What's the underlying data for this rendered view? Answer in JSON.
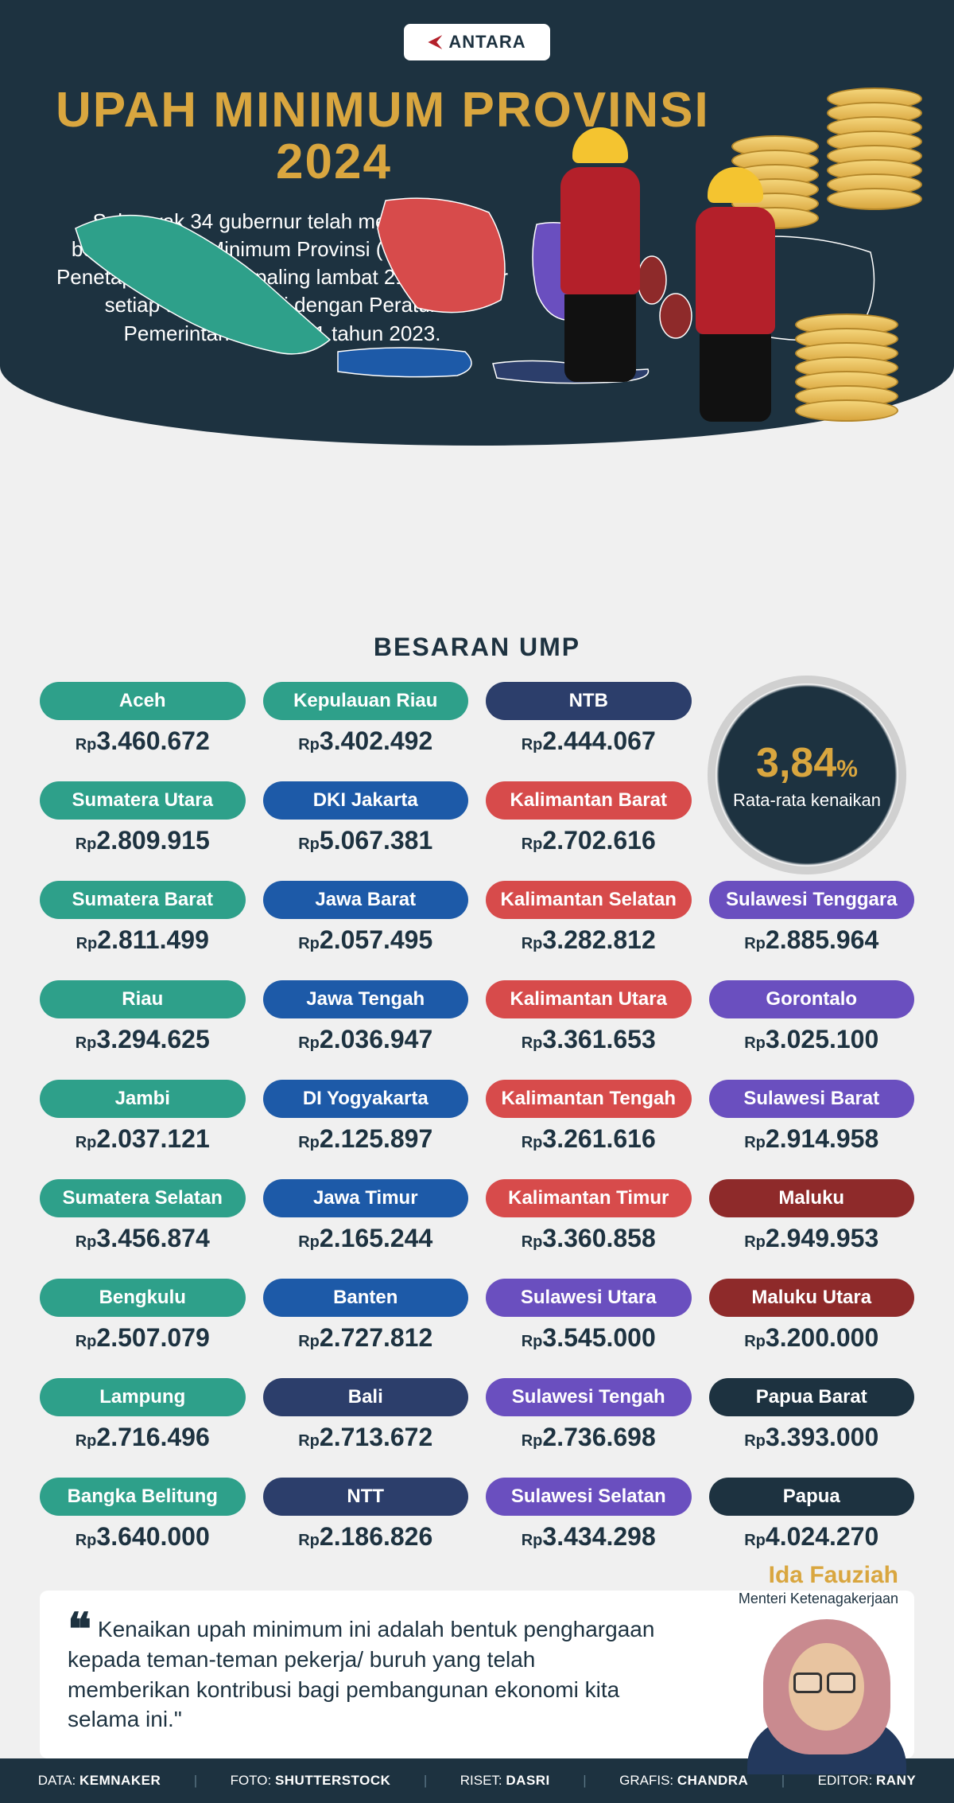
{
  "logo_text": "ANTARA",
  "title_line1": "UPAH MINIMUM PROVINSI",
  "title_line2": "2024",
  "intro": "Sebanyak 34 gubernur telah menetapkan besaran Upah Minimum Provinsi (UMP) 2024. Penetapan dilakukan paling lambat 21 November setiap tahun, sesuai dengan Peraturan Pemerintah Nomor 51 tahun 2023.",
  "section_heading": "BESARAN UMP",
  "stat": {
    "value": "3,84",
    "unit": "%",
    "label": "Rata-rata kenaikan"
  },
  "currency_prefix": "Rp",
  "colors": {
    "teal": "#2ea08a",
    "blue": "#1d5aa8",
    "navy": "#2c3e6b",
    "red": "#d74b4b",
    "purple": "#6a4fbf",
    "darkred": "#8e2a2a",
    "dark": "#1d3240",
    "slate": "#3d5a6e",
    "accent_gold": "#d9a63f",
    "bg_dark": "#1d3240"
  },
  "provinces": [
    {
      "name": "Aceh",
      "value": "3.460.672",
      "color": "teal"
    },
    {
      "name": "Kepulauan Riau",
      "value": "3.402.492",
      "color": "teal"
    },
    {
      "name": "NTB",
      "value": "2.444.067",
      "color": "navy"
    },
    {
      "name": "",
      "value": "",
      "color": ""
    },
    {
      "name": "Sumatera Utara",
      "value": "2.809.915",
      "color": "teal"
    },
    {
      "name": "DKI Jakarta",
      "value": "5.067.381",
      "color": "blue"
    },
    {
      "name": "Kalimantan Barat",
      "value": "2.702.616",
      "color": "red"
    },
    {
      "name": "",
      "value": "",
      "color": ""
    },
    {
      "name": "Sumatera Barat",
      "value": "2.811.499",
      "color": "teal"
    },
    {
      "name": "Jawa Barat",
      "value": "2.057.495",
      "color": "blue"
    },
    {
      "name": "Kalimantan Selatan",
      "value": "3.282.812",
      "color": "red"
    },
    {
      "name": "Sulawesi Tenggara",
      "value": "2.885.964",
      "color": "purple"
    },
    {
      "name": "Riau",
      "value": "3.294.625",
      "color": "teal"
    },
    {
      "name": "Jawa Tengah",
      "value": "2.036.947",
      "color": "blue"
    },
    {
      "name": "Kalimantan Utara",
      "value": "3.361.653",
      "color": "red"
    },
    {
      "name": "Gorontalo",
      "value": "3.025.100",
      "color": "purple"
    },
    {
      "name": "Jambi",
      "value": "2.037.121",
      "color": "teal"
    },
    {
      "name": "DI Yogyakarta",
      "value": "2.125.897",
      "color": "blue"
    },
    {
      "name": "Kalimantan Tengah",
      "value": "3.261.616",
      "color": "red"
    },
    {
      "name": "Sulawesi Barat",
      "value": "2.914.958",
      "color": "purple"
    },
    {
      "name": "Sumatera Selatan",
      "value": "3.456.874",
      "color": "teal"
    },
    {
      "name": "Jawa Timur",
      "value": "2.165.244",
      "color": "blue"
    },
    {
      "name": "Kalimantan Timur",
      "value": "3.360.858",
      "color": "red"
    },
    {
      "name": "Maluku",
      "value": "2.949.953",
      "color": "darkred"
    },
    {
      "name": "Bengkulu",
      "value": "2.507.079",
      "color": "teal"
    },
    {
      "name": "Banten",
      "value": "2.727.812",
      "color": "blue"
    },
    {
      "name": "Sulawesi Utara",
      "value": "3.545.000",
      "color": "purple"
    },
    {
      "name": "Maluku Utara",
      "value": "3.200.000",
      "color": "darkred"
    },
    {
      "name": "Lampung",
      "value": "2.716.496",
      "color": "teal"
    },
    {
      "name": "Bali",
      "value": "2.713.672",
      "color": "navy"
    },
    {
      "name": "Sulawesi Tengah",
      "value": "2.736.698",
      "color": "purple"
    },
    {
      "name": "Papua Barat",
      "value": "3.393.000",
      "color": "dark"
    },
    {
      "name": "Bangka Belitung",
      "value": "3.640.000",
      "color": "teal"
    },
    {
      "name": "NTT",
      "value": "2.186.826",
      "color": "navy"
    },
    {
      "name": "Sulawesi Selatan",
      "value": "3.434.298",
      "color": "purple"
    },
    {
      "name": "Papua",
      "value": "4.024.270",
      "color": "dark"
    }
  ],
  "quote": {
    "text": "Kenaikan upah minimum ini adalah bentuk penghargaan kepada teman-teman pekerja/ buruh yang telah memberikan kontribusi bagi pembangunan ekonomi kita selama ini.\"",
    "person_name": "Ida Fauziah",
    "person_title": "Menteri Ketenagakerjaan"
  },
  "footer": {
    "data_label": "DATA:",
    "data_value": "KEMNAKER",
    "foto_label": "FOTO:",
    "foto_value": "SHUTTERSTOCK",
    "riset_label": "RISET:",
    "riset_value": "DASRI",
    "grafis_label": "GRAFIS:",
    "grafis_value": "CHANDRA",
    "editor_label": "EDITOR:",
    "editor_value": "RANY"
  }
}
